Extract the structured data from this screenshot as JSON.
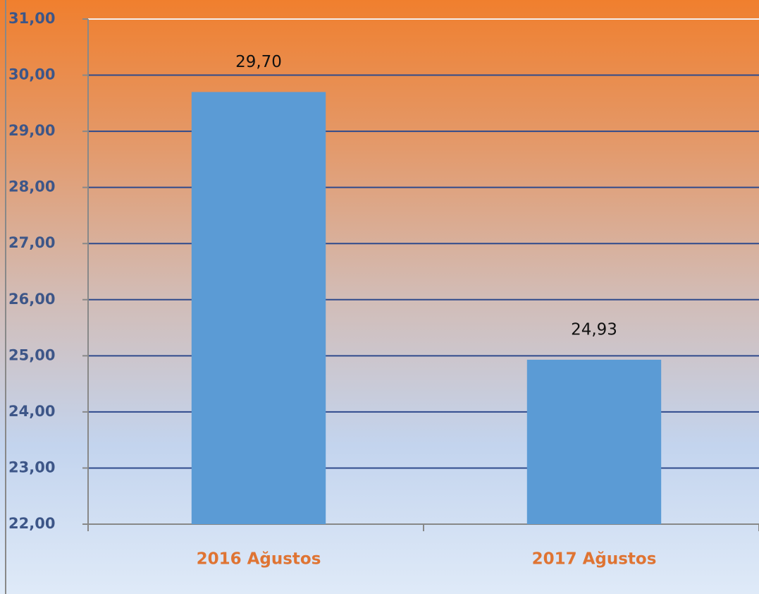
{
  "chart_data": {
    "type": "bar",
    "categories": [
      "2016 Ağustos",
      "2017 Ağustos"
    ],
    "values": [
      29.7,
      24.93
    ],
    "value_labels": [
      "29,70",
      "24,93"
    ],
    "color": "#5b9bd5",
    "ylim": [
      22,
      31
    ],
    "yticks": [
      {
        "value": 22,
        "label": "22,00"
      },
      {
        "value": 23,
        "label": "23,00"
      },
      {
        "value": 24,
        "label": "24,00"
      },
      {
        "value": 25,
        "label": "25,00"
      },
      {
        "value": 26,
        "label": "26,00"
      },
      {
        "value": 27,
        "label": "27,00"
      },
      {
        "value": 28,
        "label": "28,00"
      },
      {
        "value": 29,
        "label": "29,00"
      },
      {
        "value": 30,
        "label": "30,00"
      },
      {
        "value": 31,
        "label": "31,00"
      }
    ],
    "grid": true
  }
}
